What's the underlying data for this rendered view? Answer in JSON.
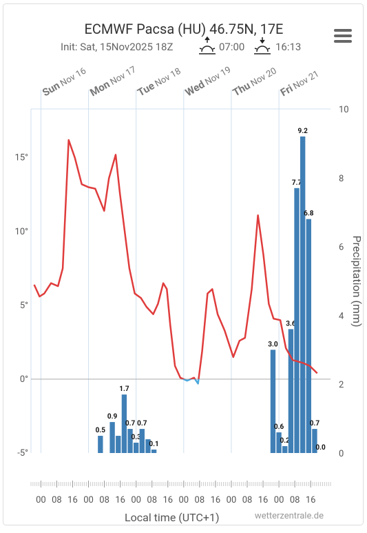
{
  "chart_data": {
    "type": "meteogram",
    "title": "ECMWF Pacsa (HU) 46.75N, 17E",
    "subtitle": "Init: Sat, 15Nov2025 18Z",
    "sunrise": "07:00",
    "sunset": "16:13",
    "x_axis_label": "Local time (UTC+1)",
    "y2_axis_label": "Precipitation (mm)",
    "source": "wetterzentrale.de",
    "xlim": [
      -5,
      146
    ],
    "ylim": [
      -5,
      18.3
    ],
    "y2lim": [
      0,
      10
    ],
    "yticks": [
      {
        "value": -5,
        "label": "-5°"
      },
      {
        "value": 0,
        "label": "0°"
      },
      {
        "value": 5,
        "label": "5°"
      },
      {
        "value": 10,
        "label": "10°"
      },
      {
        "value": 15,
        "label": "15°"
      }
    ],
    "y2ticks": [
      0,
      2,
      4,
      6,
      8,
      10
    ],
    "day_ticks": [
      {
        "value": 0,
        "day": "Sun",
        "date": "Nov 16"
      },
      {
        "value": 24,
        "day": "Mon",
        "date": "Nov 17"
      },
      {
        "value": 48,
        "day": "Tue",
        "date": "Nov 18"
      },
      {
        "value": 72,
        "day": "Wed",
        "date": "Nov 19"
      },
      {
        "value": 96,
        "day": "Thu",
        "date": "Nov 20"
      },
      {
        "value": 120,
        "day": "Fri",
        "date": "Nov 21"
      }
    ],
    "xticks": [
      {
        "value": 0,
        "label": "00"
      },
      {
        "value": 8,
        "label": "08"
      },
      {
        "value": 16,
        "label": "16"
      },
      {
        "value": 24,
        "label": "00"
      },
      {
        "value": 32,
        "label": "08"
      },
      {
        "value": 40,
        "label": "16"
      },
      {
        "value": 48,
        "label": "00"
      },
      {
        "value": 56,
        "label": "08"
      },
      {
        "value": 64,
        "label": "16"
      },
      {
        "value": 72,
        "label": "00"
      },
      {
        "value": 80,
        "label": "08"
      },
      {
        "value": 88,
        "label": "16"
      },
      {
        "value": 96,
        "label": "00"
      },
      {
        "value": 104,
        "label": "08"
      },
      {
        "value": 112,
        "label": "16"
      },
      {
        "value": 120,
        "label": "00"
      },
      {
        "value": 128,
        "label": "08"
      },
      {
        "value": 136,
        "label": "16"
      }
    ],
    "below_zero_color": "#4aa8dc",
    "series": [
      {
        "type": "line",
        "color": "#e03c3c",
        "x": [
          -3.4,
          -0.7,
          1.7,
          5.1,
          8.6,
          11,
          14,
          17.1,
          20.6,
          24,
          27.4,
          29.8,
          31.9,
          34.3,
          37.7,
          39.8,
          42.9,
          44.6,
          47.3,
          50.4,
          53.2,
          56.6,
          59,
          61.7,
          63.5,
          65.2,
          67.6,
          70.3,
          73.7,
          77.2,
          79.2,
          81.3,
          84,
          86.4,
          89.1,
          92.6,
          97,
          100.1,
          102.9,
          106.3,
          109.4,
          112.2,
          114.9,
          117.3,
          120.7,
          123.5,
          126.9,
          132.1,
          135.5,
          139.3
        ],
        "values": [
          6.4,
          5.6,
          5.8,
          6.5,
          6.3,
          7.5,
          16.2,
          15.0,
          13.2,
          13.0,
          12.9,
          12.1,
          11.4,
          13.6,
          15.2,
          12.6,
          9.3,
          7.5,
          5.8,
          5.5,
          4.9,
          4.4,
          5.1,
          6.5,
          6.1,
          3.7,
          0.9,
          0.1,
          -0.1,
          0.1,
          -0.3,
          1.9,
          5.8,
          6.1,
          4.4,
          3.3,
          1.5,
          2.6,
          2.8,
          6.1,
          11.1,
          8.4,
          5.1,
          4.1,
          4.0,
          2.1,
          1.3,
          1.1,
          0.9,
          0.4
        ]
      },
      {
        "type": "bar",
        "axis": "y2",
        "color": "#3f7fb6",
        "x": [
          30,
          36,
          39,
          42,
          45,
          48,
          51,
          54,
          57,
          117,
          120,
          123,
          126,
          129,
          132,
          135,
          138,
          141
        ],
        "values": [
          0.5,
          0.9,
          0.5,
          1.7,
          0.7,
          0.3,
          0.7,
          0.4,
          0.1,
          3.0,
          0.6,
          0.2,
          3.6,
          7.7,
          9.2,
          6.8,
          0.7,
          0.0
        ],
        "value_labels": [
          "0.5",
          "0.9",
          null,
          "1.7",
          "0.7",
          "0.3",
          "0.7",
          null,
          "0.1",
          "3.0",
          "0.6",
          "0.2",
          "3.6",
          "7.7",
          "9.2",
          "6.8",
          "0.7",
          "0.0"
        ]
      }
    ]
  }
}
